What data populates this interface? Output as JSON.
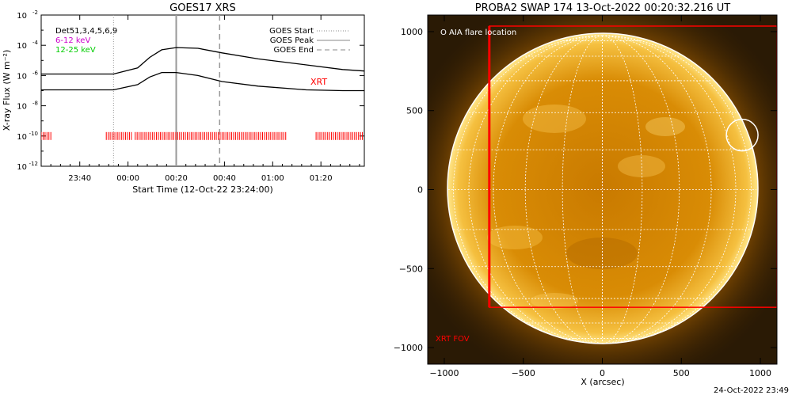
{
  "chart_data": [
    {
      "type": "line",
      "title": "GOES17 XRS",
      "xlabel": "Start Time (12-Oct-22 23:24:00)",
      "ylabel": "X-ray Flux (W m⁻²)",
      "y_scale": "log",
      "x_ticks": [
        "23:40",
        "00:00",
        "00:20",
        "00:40",
        "01:00",
        "01:20"
      ],
      "x_tick_minutes": [
        16,
        36,
        56,
        76,
        96,
        116
      ],
      "xlim_minutes": [
        0,
        134
      ],
      "y_tick_exponents": [
        -12,
        -10,
        -8,
        -6,
        -4,
        -2
      ],
      "ylim_exponents": [
        -12,
        -2
      ],
      "legend_left": [
        {
          "text": "Det51,3,4,5,6,9",
          "color": "#000000"
        },
        {
          "text": "6-12 keV",
          "color": "#cc00cc"
        },
        {
          "text": "12-25 keV",
          "color": "#00cc00"
        }
      ],
      "legend_right": [
        {
          "text": "GOES Start",
          "style": "dotted"
        },
        {
          "text": "GOES Peak",
          "style": "solid"
        },
        {
          "text": "GOES End",
          "style": "dashed"
        }
      ],
      "markers_minutes": {
        "start": 30,
        "peak": 56,
        "end": 74
      },
      "series": [
        {
          "color": "#000000",
          "x_min": [
            0,
            30,
            40,
            45,
            50,
            56,
            65,
            75,
            90,
            110,
            125,
            134
          ],
          "log_flux": [
            -5.9,
            -5.9,
            -5.5,
            -4.8,
            -4.3,
            -4.15,
            -4.2,
            -4.5,
            -4.9,
            -5.3,
            -5.6,
            -5.7
          ]
        },
        {
          "color": "#000000",
          "x_min": [
            0,
            30,
            40,
            45,
            50,
            56,
            65,
            75,
            90,
            110,
            125,
            134
          ],
          "log_flux": [
            -6.95,
            -6.95,
            -6.6,
            -6.1,
            -5.8,
            -5.8,
            -6.0,
            -6.4,
            -6.7,
            -6.95,
            -7.0,
            -7.0
          ]
        }
      ],
      "xrt_label": "XRT",
      "xrt_coverage_minutes": [
        [
          0,
          4
        ],
        [
          27,
          38
        ],
        [
          39,
          102
        ],
        [
          114,
          134
        ]
      ],
      "xrt_log_level": -10.0
    },
    {
      "type": "image",
      "title": "PROBA2 SWAP 174 13-Oct-2022 00:20:32.216 UT",
      "xlabel": "X (arcsec)",
      "x_ticks": [
        -1000,
        -500,
        0,
        500,
        1000
      ],
      "y_ticks": [
        1000,
        500,
        0,
        -500,
        -1000
      ],
      "xlim": [
        -1105,
        1105
      ],
      "ylim": [
        -1105,
        1105
      ],
      "annotation_flare": "O AIA flare location",
      "annotation_fov": "XRT FOV",
      "flare_location": [
        885,
        345
      ],
      "fov_box": [
        -715,
        -745,
        1105,
        1035
      ],
      "footer": "24-Oct-2022 23:49"
    }
  ]
}
